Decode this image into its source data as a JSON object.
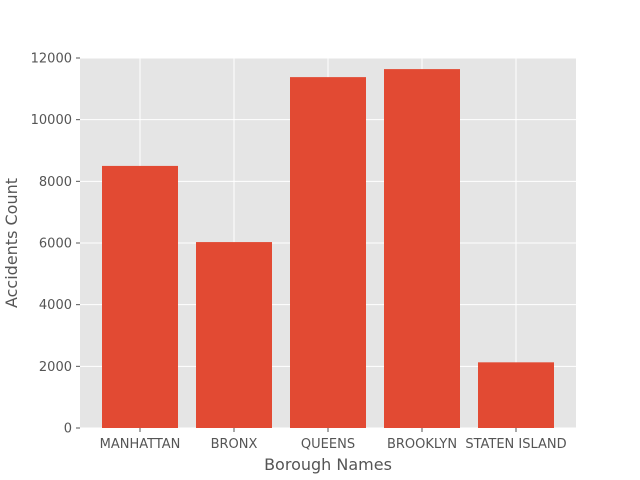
{
  "chart_data": {
    "type": "bar",
    "title": "",
    "xlabel": "Borough Names",
    "ylabel": "Accidents Count",
    "categories": [
      "MANHATTAN",
      "BRONX",
      "QUEENS",
      "BROOKLYN",
      "STATEN ISLAND"
    ],
    "values": [
      8500,
      6030,
      11380,
      11640,
      2130
    ],
    "ylim": [
      0,
      12000
    ],
    "yticks": [
      0,
      2000,
      4000,
      6000,
      8000,
      10000,
      12000
    ],
    "grid": true,
    "colors": {
      "bar": "#e24a33",
      "plot_background": "#e5e5e5",
      "grid": "#ffffff",
      "text": "#555555"
    }
  }
}
